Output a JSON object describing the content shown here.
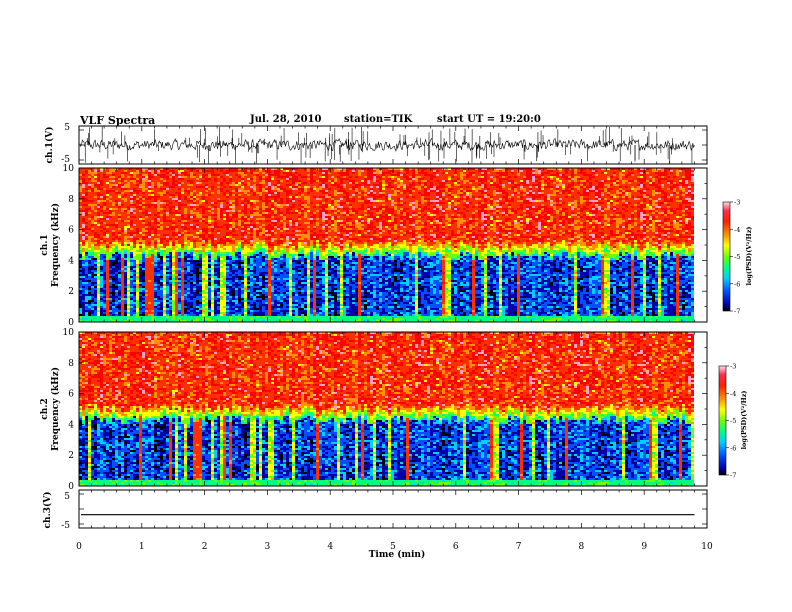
{
  "header": {
    "title": "VLF Spectra",
    "date": "Jul. 28, 2010",
    "station": "station=TIK",
    "start": "start UT = 19:20:0"
  },
  "chart_data": [
    {
      "type": "line",
      "panel": "ch1-waveform",
      "ylabel": "ch.1(V)",
      "ylim": [
        -5,
        5
      ],
      "yticks": [
        "5",
        "-5"
      ],
      "xlim": [
        0,
        10
      ],
      "data_end_min": 9.8,
      "baseline_V": 0,
      "noise_amplitude_V": 1.2,
      "spikes_up_to_V": 5,
      "color": "#000000"
    },
    {
      "type": "heatmap",
      "panel": "ch1-spectrogram",
      "ylabel": "ch.1\nFrequency (kHz)",
      "ylim": [
        0,
        10
      ],
      "yticks": [
        "0",
        "2",
        "4",
        "6",
        "8",
        "10"
      ],
      "xlim": [
        0,
        10
      ],
      "data_end_min": 9.8,
      "noise_floor_boundary_kHz": 4.3,
      "colorbar": {
        "label": "log(PSD)(V²/Hz)",
        "range": [
          -7,
          -3
        ],
        "ticks": [
          "-3",
          "-4",
          "-5",
          "-6",
          "-7"
        ]
      },
      "colormap": [
        "#000000",
        "#0000aa",
        "#0050ff",
        "#00d0ff",
        "#00ff80",
        "#70ff00",
        "#ffff00",
        "#ff9000",
        "#ff3000",
        "#ff0000",
        "#ffa0c0"
      ]
    },
    {
      "type": "heatmap",
      "panel": "ch2-spectrogram",
      "ylabel": "ch.2\nFrequency (kHz)",
      "ylim": [
        0,
        10
      ],
      "yticks": [
        "0",
        "2",
        "4",
        "6",
        "8",
        "10"
      ],
      "xlim": [
        0,
        10
      ],
      "data_end_min": 9.8,
      "noise_floor_boundary_kHz": 4.3,
      "colorbar": {
        "label": "log(PSD)(V²/Hz)",
        "range": [
          -7,
          -3
        ],
        "ticks": [
          "-3",
          "-4",
          "-5",
          "-6",
          "-7"
        ]
      },
      "colormap": [
        "#000000",
        "#0000aa",
        "#0050ff",
        "#00d0ff",
        "#00ff80",
        "#70ff00",
        "#ffff00",
        "#ff9000",
        "#ff3000",
        "#ff0000",
        "#ffa0c0"
      ]
    },
    {
      "type": "line",
      "panel": "ch3-waveform",
      "ylabel": "ch.3(V)",
      "ylim": [
        -5,
        5
      ],
      "yticks": [
        "5",
        "-5"
      ],
      "xlim": [
        0,
        10
      ],
      "data_end_min": 9.8,
      "baseline_V": -1.5,
      "color": "#000000",
      "xlabel": "Time (min)",
      "xticks": [
        "0",
        "1",
        "2",
        "3",
        "4",
        "5",
        "6",
        "7",
        "8",
        "9",
        "10"
      ]
    }
  ]
}
